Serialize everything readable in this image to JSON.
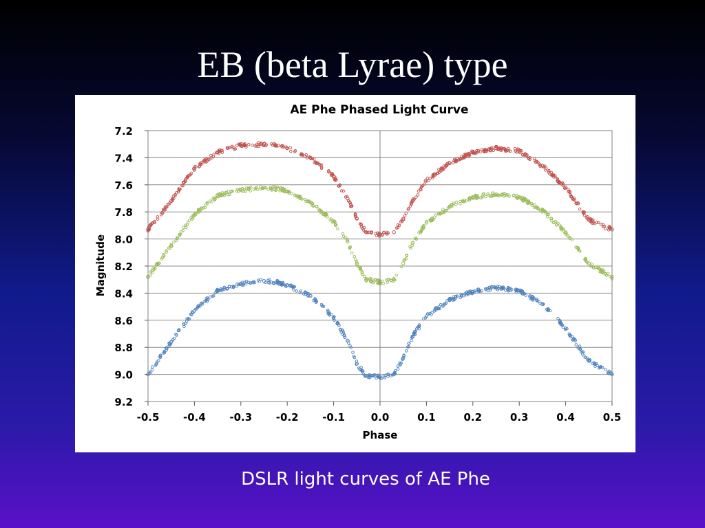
{
  "slide": {
    "title": "EB (beta Lyrae) type",
    "caption": "DSLR light curves of AE Phe"
  },
  "chart_data": {
    "type": "scatter",
    "title": "AE Phe Phased Light Curve",
    "xlabel": "Phase",
    "ylabel": "Magnitude",
    "xlim": [
      -0.5,
      0.5
    ],
    "ylim": [
      7.2,
      9.2
    ],
    "y_inverted": true,
    "grid": true,
    "legend": "none",
    "x_ticks": [
      "-0.5",
      "-0.4",
      "-0.3",
      "-0.2",
      "-0.1",
      "0.0",
      "0.1",
      "0.2",
      "0.3",
      "0.4",
      "0.5"
    ],
    "y_ticks": [
      "7.2",
      "7.4",
      "7.6",
      "7.8",
      "8.0",
      "8.2",
      "8.4",
      "8.6",
      "8.8",
      "9.0",
      "9.2"
    ],
    "series": [
      {
        "color": "#c0504d",
        "phase": [
          -0.5,
          -0.45,
          -0.4,
          -0.35,
          -0.3,
          -0.25,
          -0.22,
          -0.2,
          -0.15,
          -0.1,
          -0.07,
          -0.05,
          -0.03,
          0.0,
          0.03,
          0.05,
          0.07,
          0.1,
          0.15,
          0.2,
          0.25,
          0.3,
          0.35,
          0.4,
          0.45,
          0.5
        ],
        "magnitude": [
          7.93,
          7.72,
          7.48,
          7.36,
          7.31,
          7.3,
          7.31,
          7.33,
          7.4,
          7.54,
          7.7,
          7.85,
          7.95,
          7.97,
          7.95,
          7.85,
          7.72,
          7.57,
          7.44,
          7.36,
          7.33,
          7.35,
          7.46,
          7.62,
          7.86,
          7.93
        ]
      },
      {
        "color": "#9bbb59",
        "phase": [
          -0.5,
          -0.45,
          -0.4,
          -0.35,
          -0.3,
          -0.25,
          -0.22,
          -0.2,
          -0.15,
          -0.1,
          -0.07,
          -0.05,
          -0.03,
          0.0,
          0.03,
          0.05,
          0.07,
          0.1,
          0.15,
          0.2,
          0.25,
          0.3,
          0.35,
          0.4,
          0.45,
          0.5
        ],
        "magnitude": [
          8.28,
          8.05,
          7.82,
          7.68,
          7.64,
          7.62,
          7.63,
          7.65,
          7.73,
          7.87,
          8.02,
          8.18,
          8.3,
          8.32,
          8.3,
          8.18,
          8.03,
          7.88,
          7.76,
          7.69,
          7.67,
          7.69,
          7.79,
          7.95,
          8.18,
          8.28
        ]
      },
      {
        "color": "#4f81bd",
        "phase": [
          -0.5,
          -0.45,
          -0.4,
          -0.35,
          -0.3,
          -0.25,
          -0.22,
          -0.2,
          -0.15,
          -0.1,
          -0.07,
          -0.05,
          -0.03,
          0.0,
          0.03,
          0.05,
          0.07,
          0.1,
          0.15,
          0.2,
          0.25,
          0.3,
          0.35,
          0.4,
          0.45,
          0.5
        ],
        "magnitude": [
          9.0,
          8.76,
          8.53,
          8.38,
          8.33,
          8.31,
          8.32,
          8.34,
          8.42,
          8.58,
          8.75,
          8.92,
          9.01,
          9.02,
          9.0,
          8.88,
          8.72,
          8.57,
          8.45,
          8.39,
          8.36,
          8.38,
          8.48,
          8.66,
          8.9,
          9.0
        ]
      }
    ]
  }
}
